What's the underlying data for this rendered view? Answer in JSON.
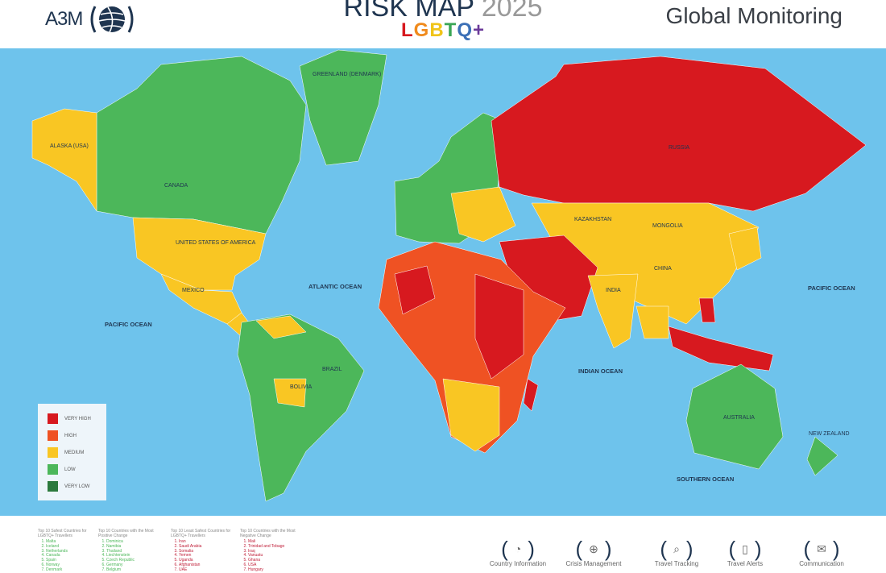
{
  "header": {
    "logo": "A3M",
    "title": "RISK MAP",
    "year": "2025",
    "subtitle_letters": [
      "L",
      "G",
      "B",
      "T",
      "Q",
      "+"
    ],
    "subtitle_colors": [
      "#d7191f",
      "#f08a1c",
      "#f0c419",
      "#3aa655",
      "#3b6fb6",
      "#6b3a9a"
    ],
    "right_title": "Global Monitoring"
  },
  "colors": {
    "ocean": "#6ec3ec",
    "very_high": "#d7191f",
    "high": "#ef5223",
    "medium": "#f9c623",
    "low": "#4cb75a",
    "very_low": "#2c7a3d"
  },
  "legend": [
    {
      "label": "VERY HIGH",
      "color": "#d7191f"
    },
    {
      "label": "HIGH",
      "color": "#ef5223"
    },
    {
      "label": "MEDIUM",
      "color": "#f9c623"
    },
    {
      "label": "LOW",
      "color": "#4cb75a"
    },
    {
      "label": "VERY LOW",
      "color": "#2c7a3d"
    }
  ],
  "map_labels": {
    "greenland": "GREENLAND (DENMARK)",
    "alaska": "ALASKA (USA)",
    "canada": "CANADA",
    "usa": "UNITED STATES OF AMERICA",
    "mexico": "MEXICO",
    "russia": "RUSSIA",
    "kazakhstan": "KAZAKHSTAN",
    "mongolia": "MONGOLIA",
    "china": "CHINA",
    "india": "INDIA",
    "brazil": "BRAZIL",
    "bolivia": "BOLIVIA",
    "australia": "AUSTRALIA",
    "new_zealand": "NEW ZEALAND",
    "pacific_w": "PACIFIC OCEAN",
    "pacific_e": "PACIFIC OCEAN",
    "atlantic": "ATLANTIC OCEAN",
    "indian": "INDIAN OCEAN",
    "southern": "SOUTHERN OCEAN"
  },
  "lists": [
    {
      "heading": "Top 10 Safest Countries for LGBTQ+ Travellers",
      "color": "#4cb75a",
      "items": [
        "Malta",
        "Iceland",
        "Netherlands",
        "Canada",
        "Spain",
        "Norway",
        "Denmark"
      ]
    },
    {
      "heading": "Top 10 Countries with the Most Positive Change",
      "color": "#4cb75a",
      "items": [
        "Dominica",
        "Namibia",
        "Thailand",
        "Liechtenstein",
        "Czech Republic",
        "Germany",
        "Belgium"
      ]
    },
    {
      "heading": "Top 10 Least Safest Countries for LGBTQ+ Travellers",
      "color": "#c0203a",
      "items": [
        "Iran",
        "Saudi Arabia",
        "Somalia",
        "Yemen",
        "Uganda",
        "Afghanistan",
        "UAE"
      ]
    },
    {
      "heading": "Top 10 Countries with the Most Negative Change",
      "color": "#c0203a",
      "items": [
        "Mali",
        "Trinidad and Tobago",
        "Iraq",
        "Vanuatu",
        "Ghana",
        "USA",
        "Hungary"
      ]
    }
  ],
  "services": [
    {
      "label": "Country Information",
      "icon": "clock-document-icon",
      "glyph": "◔"
    },
    {
      "label": "Crisis Management",
      "icon": "globe-people-icon",
      "glyph": "⊕"
    },
    {
      "label": "Travel Tracking",
      "icon": "map-search-icon",
      "glyph": "⌕"
    },
    {
      "label": "Travel Alerts",
      "icon": "phone-alert-icon",
      "glyph": "▯"
    },
    {
      "label": "Communication",
      "icon": "phone-message-icon",
      "glyph": "✉"
    }
  ]
}
